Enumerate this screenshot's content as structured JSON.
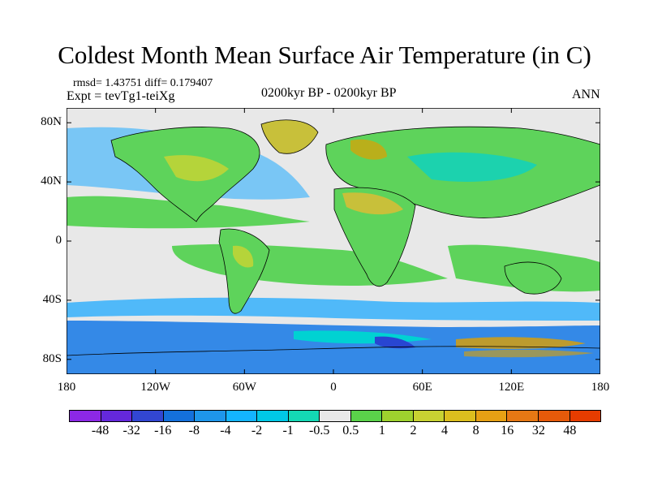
{
  "title": "Coldest Month Mean Surface Air Temperature (in C)",
  "stats": "rmsd= 1.43751 diff= 0.179407",
  "experiment": "Expt = tevTg1-teiXg",
  "period": "0200kyr BP - 0200kyr BP",
  "season": "ANN",
  "colors": {
    "ocean_neutral": "#e8e8e8",
    "green": "#5ed35b",
    "yellow_green": "#b5d43a",
    "olive": "#c8c03a",
    "orange": "#e0a000",
    "cyan": "#00d2d2",
    "light_blue": "#1eaaff",
    "blue": "#1478e6",
    "deep_blue": "#2846d2",
    "coastline": "#000000"
  },
  "chart_data": {
    "type": "map",
    "projection": "cylindrical equidistant",
    "lon_range": [
      -180,
      180
    ],
    "lat_range": [
      -90,
      90
    ],
    "y_ticks": [
      {
        "lat": 80,
        "label": "80N"
      },
      {
        "lat": 40,
        "label": "40N"
      },
      {
        "lat": 0,
        "label": "0"
      },
      {
        "lat": -40,
        "label": "40S"
      },
      {
        "lat": -80,
        "label": "80S"
      }
    ],
    "x_ticks": [
      {
        "lon": -180,
        "label": "180"
      },
      {
        "lon": -120,
        "label": "120W"
      },
      {
        "lon": -60,
        "label": "60W"
      },
      {
        "lon": 0,
        "label": "0"
      },
      {
        "lon": 60,
        "label": "60E"
      },
      {
        "lon": 120,
        "label": "120E"
      },
      {
        "lon": 180,
        "label": "180"
      }
    ],
    "colorbar": {
      "colors": [
        "#8c28e6",
        "#6428dc",
        "#3246d2",
        "#1470dc",
        "#1e96eb",
        "#14b4ff",
        "#00c8e6",
        "#14d8b4",
        "#e8e8e8",
        "#5ad24a",
        "#9ed22e",
        "#c8d232",
        "#dcbe1e",
        "#e6a014",
        "#e67814",
        "#e65a0a",
        "#e63c00"
      ],
      "labels": [
        "-48",
        "-32",
        "-16",
        "-8",
        "-4",
        "-2",
        "-1",
        "-0.5",
        "0.5",
        "1",
        "2",
        "4",
        "8",
        "16",
        "32",
        "48"
      ]
    }
  }
}
